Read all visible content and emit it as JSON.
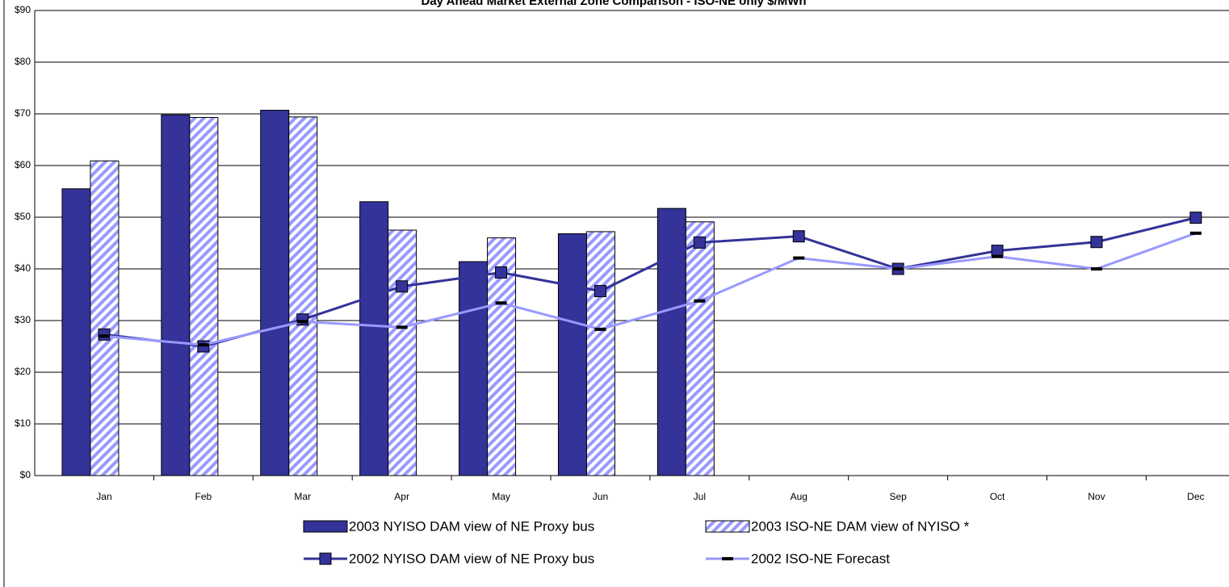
{
  "chart_data": {
    "type": "bar-line",
    "title": "Day Ahead Market External Zone Comparison - ISO-NE only $/MWh",
    "categories": [
      "Jan",
      "Feb",
      "Mar",
      "Apr",
      "May",
      "Jun",
      "Jul",
      "Aug",
      "Sep",
      "Oct",
      "Nov",
      "Dec"
    ],
    "series": [
      {
        "name": "2003 NYISO DAM view of NE Proxy bus",
        "type": "bar",
        "color": "#333399",
        "values": [
          55.5,
          69.8,
          70.7,
          53.0,
          41.4,
          46.8,
          51.7,
          null,
          null,
          null,
          null,
          null
        ]
      },
      {
        "name": "2003 ISO-NE DAM view of NYISO *",
        "type": "hatched-bar",
        "color": "#9999ff",
        "values": [
          60.9,
          69.3,
          69.4,
          47.5,
          46.0,
          47.2,
          49.1,
          null,
          null,
          null,
          null,
          null
        ]
      },
      {
        "name": "2002 NYISO DAM view of NE Proxy bus",
        "type": "line-square",
        "color": "#333399",
        "values": [
          27.3,
          25.0,
          30.2,
          36.6,
          39.3,
          35.7,
          45.1,
          46.3,
          40.0,
          43.5,
          45.2,
          49.9
        ]
      },
      {
        "name": "2002 ISO-NE Forecast",
        "type": "line-dash",
        "color": "#9999ff",
        "values": [
          27.0,
          25.3,
          29.8,
          28.7,
          33.4,
          28.3,
          33.8,
          42.1,
          40.0,
          42.4,
          40.0,
          46.9
        ]
      }
    ],
    "ylim": [
      0,
      90
    ],
    "yticks": [
      {
        "value": 0,
        "label": "$0"
      },
      {
        "value": 10,
        "label": "$10"
      },
      {
        "value": 20,
        "label": "$20"
      },
      {
        "value": 30,
        "label": "$30"
      },
      {
        "value": 40,
        "label": "$40"
      },
      {
        "value": 50,
        "label": "$50"
      },
      {
        "value": 60,
        "label": "$60"
      },
      {
        "value": 70,
        "label": "$70"
      },
      {
        "value": 80,
        "label": "$80"
      },
      {
        "value": 90,
        "label": "$90"
      }
    ],
    "grid": true,
    "legend": "bottom"
  }
}
